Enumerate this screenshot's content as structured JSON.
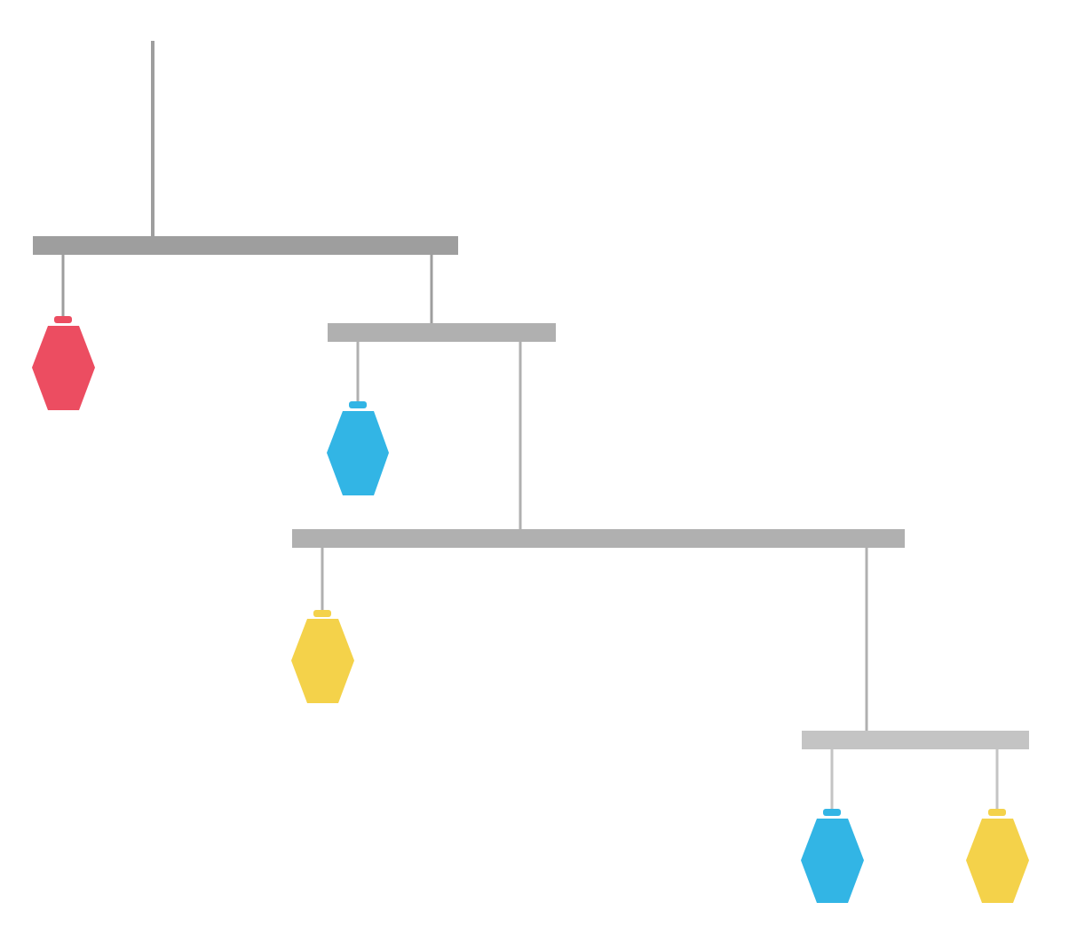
{
  "colors": {
    "background": "#ffffff",
    "bar_level_1": "#9e9e9e",
    "bar_level_2": "#b0b0b0",
    "bar_level_3": "#b0b0b0",
    "bar_level_4": "#c4c4c4",
    "red": "#ec4d61",
    "blue": "#32b5e5",
    "yellow": "#f4d24a"
  },
  "diagram": {
    "kind": "hanging mobile",
    "levels": 4,
    "ornament_shape": "hexagon",
    "ornaments": [
      {
        "color": "red",
        "level": 1
      },
      {
        "color": "blue",
        "level": 2
      },
      {
        "color": "yellow",
        "level": 3
      },
      {
        "color": "blue",
        "level": 4
      },
      {
        "color": "yellow",
        "level": 4
      }
    ]
  }
}
